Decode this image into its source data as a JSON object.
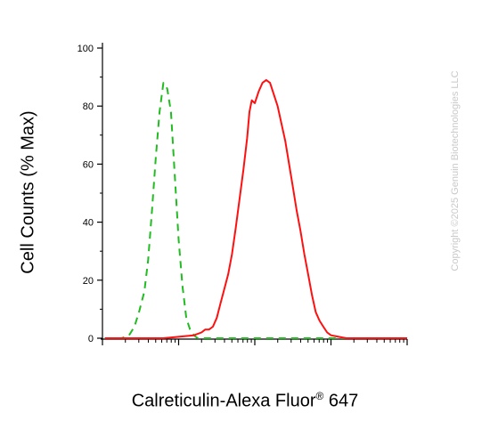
{
  "chart_data": {
    "type": "line",
    "xlabel": "Calreticulin-Alexa Fluor",
    "xlabel_sup": "®",
    "xlabel_suffix": " 647",
    "ylabel": "Cell Counts (% Max)",
    "ylim": [
      0,
      100
    ],
    "yticks": [
      0,
      20,
      40,
      60,
      80,
      100
    ],
    "xscale": "log",
    "xlim_decades": 4,
    "grid": false,
    "legend": "none",
    "series": [
      {
        "style": "dashed",
        "color": "#22bb22",
        "x": [
          0.03,
          0.15,
          0.25,
          0.35,
          0.42,
          0.48,
          0.55,
          0.6,
          0.65,
          0.7,
          0.75,
          0.8,
          0.85,
          0.9,
          0.95,
          1.0,
          1.05,
          1.1,
          1.15,
          1.2,
          1.25,
          1.3,
          1.4,
          1.6,
          2.0,
          2.5,
          3.0,
          3.5,
          4.0
        ],
        "values": [
          0,
          0,
          0,
          1,
          4,
          9,
          16,
          27,
          44,
          62,
          78,
          88,
          86,
          78,
          56,
          34,
          18,
          7,
          3,
          1,
          0,
          0,
          0,
          0,
          0,
          0,
          0,
          0,
          0
        ]
      },
      {
        "style": "solid",
        "color": "#ff1010",
        "x": [
          0.03,
          0.5,
          0.8,
          1.0,
          1.2,
          1.3,
          1.35,
          1.4,
          1.45,
          1.5,
          1.55,
          1.6,
          1.65,
          1.7,
          1.75,
          1.8,
          1.85,
          1.9,
          1.93,
          1.96,
          2.0,
          2.05,
          2.1,
          2.15,
          2.2,
          2.3,
          2.35,
          2.4,
          2.45,
          2.5,
          2.55,
          2.6,
          2.65,
          2.7,
          2.75,
          2.8,
          2.85,
          2.9,
          2.95,
          3.0,
          3.1,
          3.2,
          3.5,
          4.0
        ],
        "values": [
          0,
          0,
          0,
          0.5,
          1,
          2,
          3,
          3,
          4,
          7,
          12,
          17,
          22,
          29,
          38,
          48,
          58,
          69,
          78,
          82,
          81,
          85,
          88,
          89,
          88,
          80,
          74,
          68,
          60,
          52,
          44,
          37,
          29,
          22,
          15,
          9,
          6,
          4,
          2,
          1,
          0.5,
          0,
          0,
          0
        ]
      }
    ]
  },
  "copyright": "Copyright ©2025 Genuin Biotechnologies LLC"
}
